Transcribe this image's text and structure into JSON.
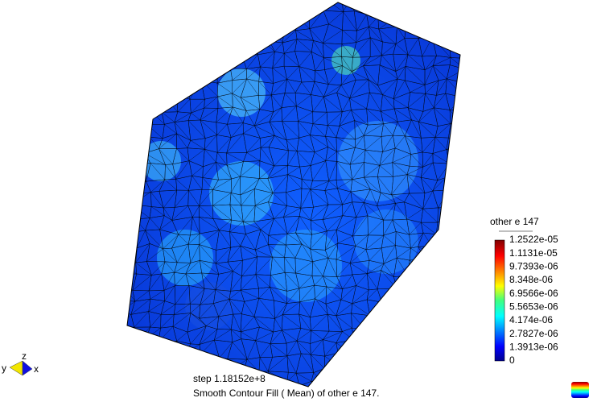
{
  "legend": {
    "title": "other e 147",
    "labels": [
      "1.2522e-05",
      "1.1131e-05",
      "9.7393e-06",
      "8.348e-06",
      "6.9566e-06",
      "5.5653e-06",
      "4.174e-06",
      "2.7827e-06",
      "1.3913e-06",
      "0"
    ]
  },
  "step": "step 1.18152e+8",
  "caption": "Smooth Contour Fill ( Mean) of other e 147.",
  "axes": {
    "x": "x",
    "y": "y",
    "z": "z"
  }
}
